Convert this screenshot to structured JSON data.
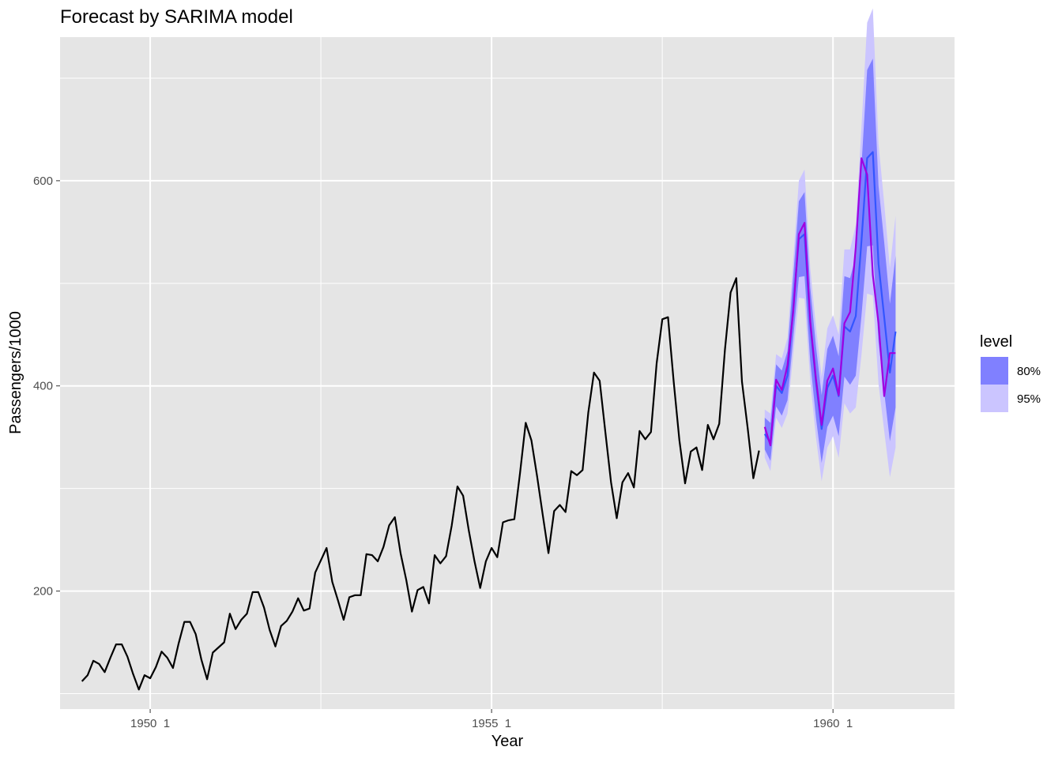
{
  "chart_data": {
    "type": "line",
    "title": "Forecast by SARIMA model",
    "xlabel": "Year",
    "ylabel": "Passengers/1000",
    "xlim": [
      1948.68,
      1961.78
    ],
    "ylim": [
      85,
      740
    ],
    "x_ticks": [
      {
        "value": 1950.0,
        "label": "1950  1"
      },
      {
        "value": 1955.0,
        "label": "1955  1"
      },
      {
        "value": 1960.0,
        "label": "1960  1"
      }
    ],
    "y_ticks": [
      200,
      400,
      600
    ],
    "grid": true,
    "legend": {
      "title": "level",
      "position": "right",
      "items": [
        {
          "label": "80%",
          "color": "#8080ff"
        },
        {
          "label": "95%",
          "color": "#cbc5ff"
        }
      ]
    },
    "colors": {
      "panel": "#e5e5e5",
      "grid": "#ffffff",
      "history": "#000000",
      "forecast": "#3355ff",
      "fitted": "#a000e0",
      "band80": "#8080ff",
      "band95": "#cbc5ff"
    },
    "history": {
      "start": 1949.0,
      "step": 0.0833333,
      "values": [
        112,
        118,
        132,
        129,
        121,
        135,
        148,
        148,
        136,
        119,
        104,
        118,
        115,
        126,
        141,
        135,
        125,
        149,
        170,
        170,
        158,
        133,
        114,
        140,
        145,
        150,
        178,
        163,
        172,
        178,
        199,
        199,
        184,
        162,
        146,
        166,
        171,
        180,
        193,
        181,
        183,
        218,
        230,
        242,
        209,
        191,
        172,
        194,
        196,
        196,
        236,
        235,
        229,
        243,
        264,
        272,
        237,
        211,
        180,
        201,
        204,
        188,
        235,
        227,
        234,
        264,
        302,
        293,
        259,
        229,
        203,
        229,
        242,
        233,
        267,
        269,
        270,
        315,
        364,
        347,
        312,
        274,
        237,
        278,
        284,
        277,
        317,
        313,
        318,
        374,
        413,
        405,
        355,
        306,
        271,
        306,
        315,
        301,
        356,
        348,
        355,
        422,
        465,
        467,
        404,
        347,
        305,
        336,
        340,
        318,
        362,
        348,
        363,
        435,
        491,
        505,
        404,
        359,
        310,
        337
      ]
    },
    "forecast": {
      "start": 1959.0,
      "step": 0.0833333,
      "mean": [
        353,
        345,
        400,
        393,
        410,
        476,
        543,
        548,
        460,
        404,
        358,
        398,
        410,
        390,
        458,
        453,
        468,
        541,
        622,
        628,
        519,
        467,
        413,
        453
      ],
      "fitted": [
        360,
        342,
        406,
        396,
        420,
        472,
        548,
        559,
        463,
        407,
        362,
        405,
        417,
        391,
        461,
        472,
        535,
        622,
        606,
        508,
        461,
        390,
        432,
        432
      ],
      "lo80": [
        338,
        327,
        380,
        371,
        386,
        446,
        506,
        507,
        424,
        369,
        325,
        360,
        371,
        351,
        409,
        401,
        410,
        468,
        536,
        537,
        443,
        394,
        346,
        379
      ],
      "hi80": [
        369,
        364,
        421,
        415,
        434,
        506,
        580,
        589,
        496,
        439,
        391,
        436,
        449,
        429,
        507,
        505,
        526,
        614,
        708,
        719,
        595,
        540,
        480,
        527
      ],
      "lo95": [
        330,
        317,
        369,
        359,
        373,
        430,
        486,
        485,
        405,
        350,
        307,
        340,
        351,
        330,
        383,
        373,
        379,
        430,
        490,
        488,
        402,
        356,
        311,
        340
      ],
      "hi95": [
        377,
        373,
        431,
        427,
        447,
        522,
        600,
        611,
        515,
        458,
        409,
        456,
        469,
        450,
        533,
        533,
        557,
        652,
        754,
        768,
        636,
        578,
        515,
        566
      ]
    }
  }
}
